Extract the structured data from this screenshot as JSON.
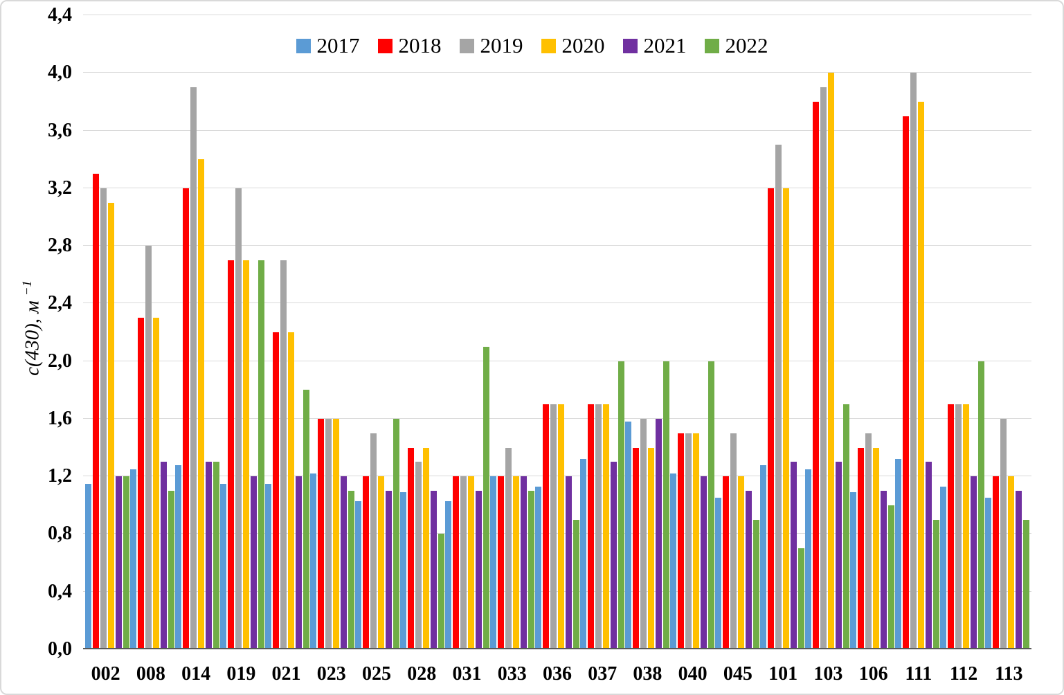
{
  "chart_data": {
    "type": "bar",
    "title": "",
    "ylabel": {
      "text": "с(430), м",
      "superscript": "−1"
    },
    "ylim": [
      0,
      4.4
    ],
    "ytick_step": 0.4,
    "yticks": [
      {
        "value": 0.0,
        "label": "0,0"
      },
      {
        "value": 0.4,
        "label": "0,4"
      },
      {
        "value": 0.8,
        "label": "0,8"
      },
      {
        "value": 1.2,
        "label": "1,2"
      },
      {
        "value": 1.6,
        "label": "1,6"
      },
      {
        "value": 2.0,
        "label": "2,0"
      },
      {
        "value": 2.4,
        "label": "2,4"
      },
      {
        "value": 2.8,
        "label": "2,8"
      },
      {
        "value": 3.2,
        "label": "3,2"
      },
      {
        "value": 3.6,
        "label": "3,6"
      },
      {
        "value": 4.0,
        "label": "4,0"
      },
      {
        "value": 4.4,
        "label": "4,4"
      }
    ],
    "grid": true,
    "legend_position": "top",
    "categories": [
      "002",
      "008",
      "014",
      "019",
      "021",
      "023",
      "025",
      "028",
      "031",
      "033",
      "036",
      "037",
      "038",
      "040",
      "045",
      "101",
      "103",
      "106",
      "111",
      "112",
      "113"
    ],
    "series": [
      {
        "name": "2017",
        "color": "#5B9BD5",
        "values": [
          1.15,
          1.25,
          1.28,
          1.15,
          1.15,
          1.22,
          1.03,
          1.09,
          1.03,
          1.2,
          1.13,
          1.32,
          1.58,
          1.22,
          1.05,
          1.28,
          1.25,
          1.09,
          1.32,
          1.13,
          1.05
        ]
      },
      {
        "name": "2018",
        "color": "#FF0000",
        "values": [
          3.3,
          2.3,
          3.2,
          2.7,
          2.2,
          1.6,
          1.2,
          1.4,
          1.2,
          1.2,
          1.7,
          1.7,
          1.4,
          1.5,
          1.2,
          3.2,
          3.8,
          1.4,
          3.7,
          1.7,
          1.2
        ]
      },
      {
        "name": "2019",
        "color": "#A5A5A5",
        "values": [
          3.2,
          2.8,
          3.9,
          3.2,
          2.7,
          1.6,
          1.5,
          1.3,
          1.2,
          1.4,
          1.7,
          1.7,
          1.6,
          1.5,
          1.5,
          3.5,
          3.9,
          1.5,
          4.0,
          1.7,
          1.6
        ]
      },
      {
        "name": "2020",
        "color": "#FFC000",
        "values": [
          3.1,
          2.3,
          3.4,
          2.7,
          2.2,
          1.6,
          1.2,
          1.4,
          1.2,
          1.2,
          1.7,
          1.7,
          1.4,
          1.5,
          1.2,
          3.2,
          4.0,
          1.4,
          3.8,
          1.7,
          1.2
        ]
      },
      {
        "name": "2021",
        "color": "#7030A0",
        "values": [
          1.2,
          1.3,
          1.3,
          1.2,
          1.2,
          1.2,
          1.1,
          1.1,
          1.1,
          1.2,
          1.2,
          1.3,
          1.6,
          1.2,
          1.1,
          1.3,
          1.3,
          1.1,
          1.3,
          1.2,
          1.1
        ]
      },
      {
        "name": "2022",
        "color": "#70AD47",
        "values": [
          1.2,
          1.1,
          1.3,
          2.7,
          1.8,
          1.1,
          1.6,
          0.8,
          2.1,
          1.1,
          0.9,
          2.0,
          2.0,
          2.0,
          0.9,
          0.7,
          1.7,
          1.0,
          0.9,
          2.0,
          0.9
        ]
      }
    ]
  },
  "colors": {
    "gridline": "#D9D9D9",
    "baseline": "#595959",
    "border": "#D9D9D9",
    "background": "#FFFFFF"
  }
}
